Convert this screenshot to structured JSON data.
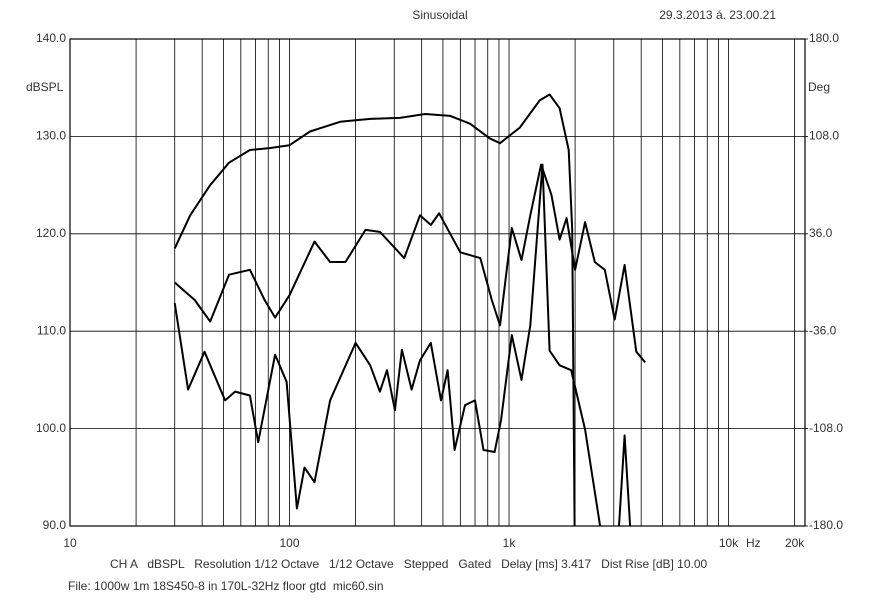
{
  "chart_data": {
    "type": "line",
    "title": "Sinusoidal",
    "timestamp": "29.3.2013 á. 23.00.21",
    "ylabel": "dBSPL",
    "y2label": "Deg",
    "xlabel": "Hz",
    "info": "CH A   dBSPL   Resolution 1/12 Octave   1/12 Octave   Stepped   Gated   Delay [ms] 3.417   Dist Rise [dB] 10.00",
    "file": "File: 1000w 1m 18S450-8 in 170L-32Hz floor gtd  mic60.sin",
    "xscale": "log",
    "grid": true,
    "xlim": [
      10,
      22300
    ],
    "xticks": [
      10,
      100,
      {
        "value": 1000,
        "label": "1k"
      },
      {
        "value": 10000,
        "label": "10k"
      },
      {
        "value": 20000,
        "label": "20k"
      }
    ],
    "xgrid": [
      20,
      30,
      40,
      50,
      60,
      70,
      80,
      90,
      200,
      300,
      400,
      500,
      600,
      700,
      800,
      900,
      2000,
      3000,
      4000,
      5000,
      6000,
      7000,
      8000,
      9000
    ],
    "ylim": [
      90,
      140
    ],
    "yticks": [
      {
        "value": 140,
        "label": "140.0"
      },
      {
        "value": 130,
        "label": "130.0"
      },
      {
        "value": 120,
        "label": "120.0"
      },
      {
        "value": 110,
        "label": "110.0"
      },
      {
        "value": 100,
        "label": "100.0"
      },
      {
        "value": 90,
        "label": "90.0"
      }
    ],
    "y2lim": [
      -180,
      180
    ],
    "y2ticks": [
      {
        "value": 180,
        "label": "180.0"
      },
      {
        "value": 108,
        "label": "108.0"
      },
      {
        "value": 36,
        "label": "36.0"
      },
      {
        "value": -36,
        "label": "-36.0"
      },
      {
        "value": -108,
        "label": "-108.0"
      },
      {
        "value": -180,
        "label": "-180.0"
      }
    ],
    "series": [
      {
        "color": "#000000",
        "x": [
          30,
          35.3,
          43.5,
          53,
          66,
          81,
          100,
          124,
          170,
          233,
          318,
          415,
          540,
          664,
          816,
          910,
          1120,
          1380,
          1530,
          1700,
          1870,
          1940,
          1990
        ],
        "values": [
          118.5,
          121.9,
          125.0,
          127.3,
          128.6,
          128.8,
          129.1,
          130.5,
          131.5,
          131.8,
          131.9,
          132.3,
          132.1,
          131.3,
          129.8,
          129.3,
          130.9,
          133.7,
          134.3,
          132.9,
          128.6,
          120.4,
          90
        ]
      },
      {
        "color": "#000000",
        "x": [
          30,
          37,
          43.5,
          53,
          66,
          77,
          86,
          100,
          130,
          153,
          180,
          222,
          258,
          333,
          393,
          440,
          480,
          600,
          740,
          835,
          910,
          1030,
          1140,
          1250,
          1400,
          1560,
          1700,
          1830,
          2000,
          2220,
          2460,
          2730,
          3030,
          3360,
          3800,
          4170
        ],
        "values": [
          115,
          113.2,
          111,
          115.8,
          116.3,
          113.2,
          111.4,
          113.7,
          119.2,
          117.1,
          117.1,
          120.4,
          120.2,
          117.5,
          121.9,
          120.9,
          122.1,
          118.1,
          117.5,
          113.2,
          110.6,
          120.6,
          117.3,
          121.9,
          127.1,
          124,
          119.4,
          121.6,
          116.3,
          121.2,
          117.1,
          116.3,
          111.2,
          116.8,
          107.9,
          106.8
        ]
      },
      {
        "color": "#000000",
        "x": [
          30,
          34.5,
          41,
          50.9,
          56.5,
          66,
          72,
          86,
          97,
          108,
          117,
          130,
          153,
          200,
          233,
          258,
          278,
          302,
          325,
          360,
          393,
          440,
          490,
          525,
          565,
          630,
          700,
          765,
          860,
          920,
          1030,
          1140,
          1250,
          1420,
          1530,
          1700,
          1920,
          2220,
          2600,
          2900,
          3170,
          3360,
          3560
        ],
        "values": [
          112.9,
          104,
          107.9,
          102.9,
          103.8,
          103.4,
          98.6,
          107.6,
          104.8,
          91.8,
          96,
          94.5,
          102.9,
          108.8,
          106.5,
          103.8,
          106,
          101.9,
          108.1,
          104,
          107,
          108.8,
          102.9,
          106,
          97.8,
          102.4,
          102.9,
          97.8,
          97.6,
          100.9,
          109.6,
          105,
          110.6,
          127.1,
          108,
          106.5,
          106,
          99.9,
          90,
          null,
          90,
          99.3,
          90
        ]
      }
    ]
  }
}
